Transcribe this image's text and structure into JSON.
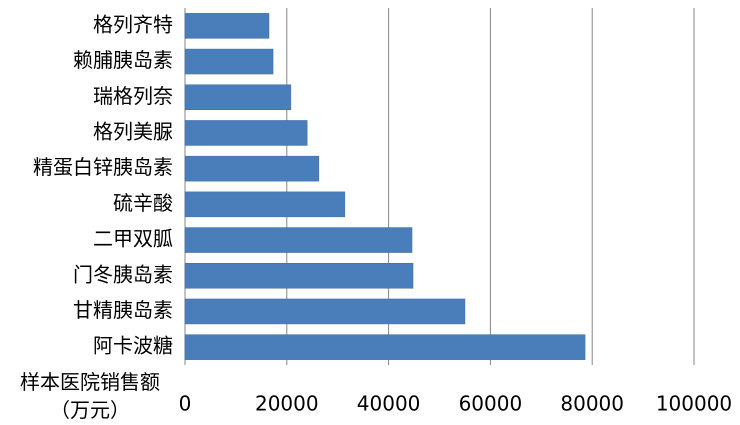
{
  "chart_data": {
    "type": "hbar",
    "categories": [
      "格列齐特",
      "赖脯胰岛素",
      "瑞格列奈",
      "格列美脲",
      "精蛋白锌胰岛素",
      "硫辛酸",
      "二甲双胍",
      "门冬胰岛素",
      "甘精胰岛素",
      "阿卡波糖"
    ],
    "values": [
      16500,
      17300,
      20800,
      24000,
      26300,
      31400,
      44600,
      44800,
      55000,
      78600
    ],
    "color": "#4a7ebb",
    "xlabel": "样本医院销售额（万元）",
    "xlim": [
      0,
      100000
    ],
    "xticks": [
      0,
      20000,
      40000,
      60000,
      80000,
      100000
    ],
    "grid": true
  }
}
